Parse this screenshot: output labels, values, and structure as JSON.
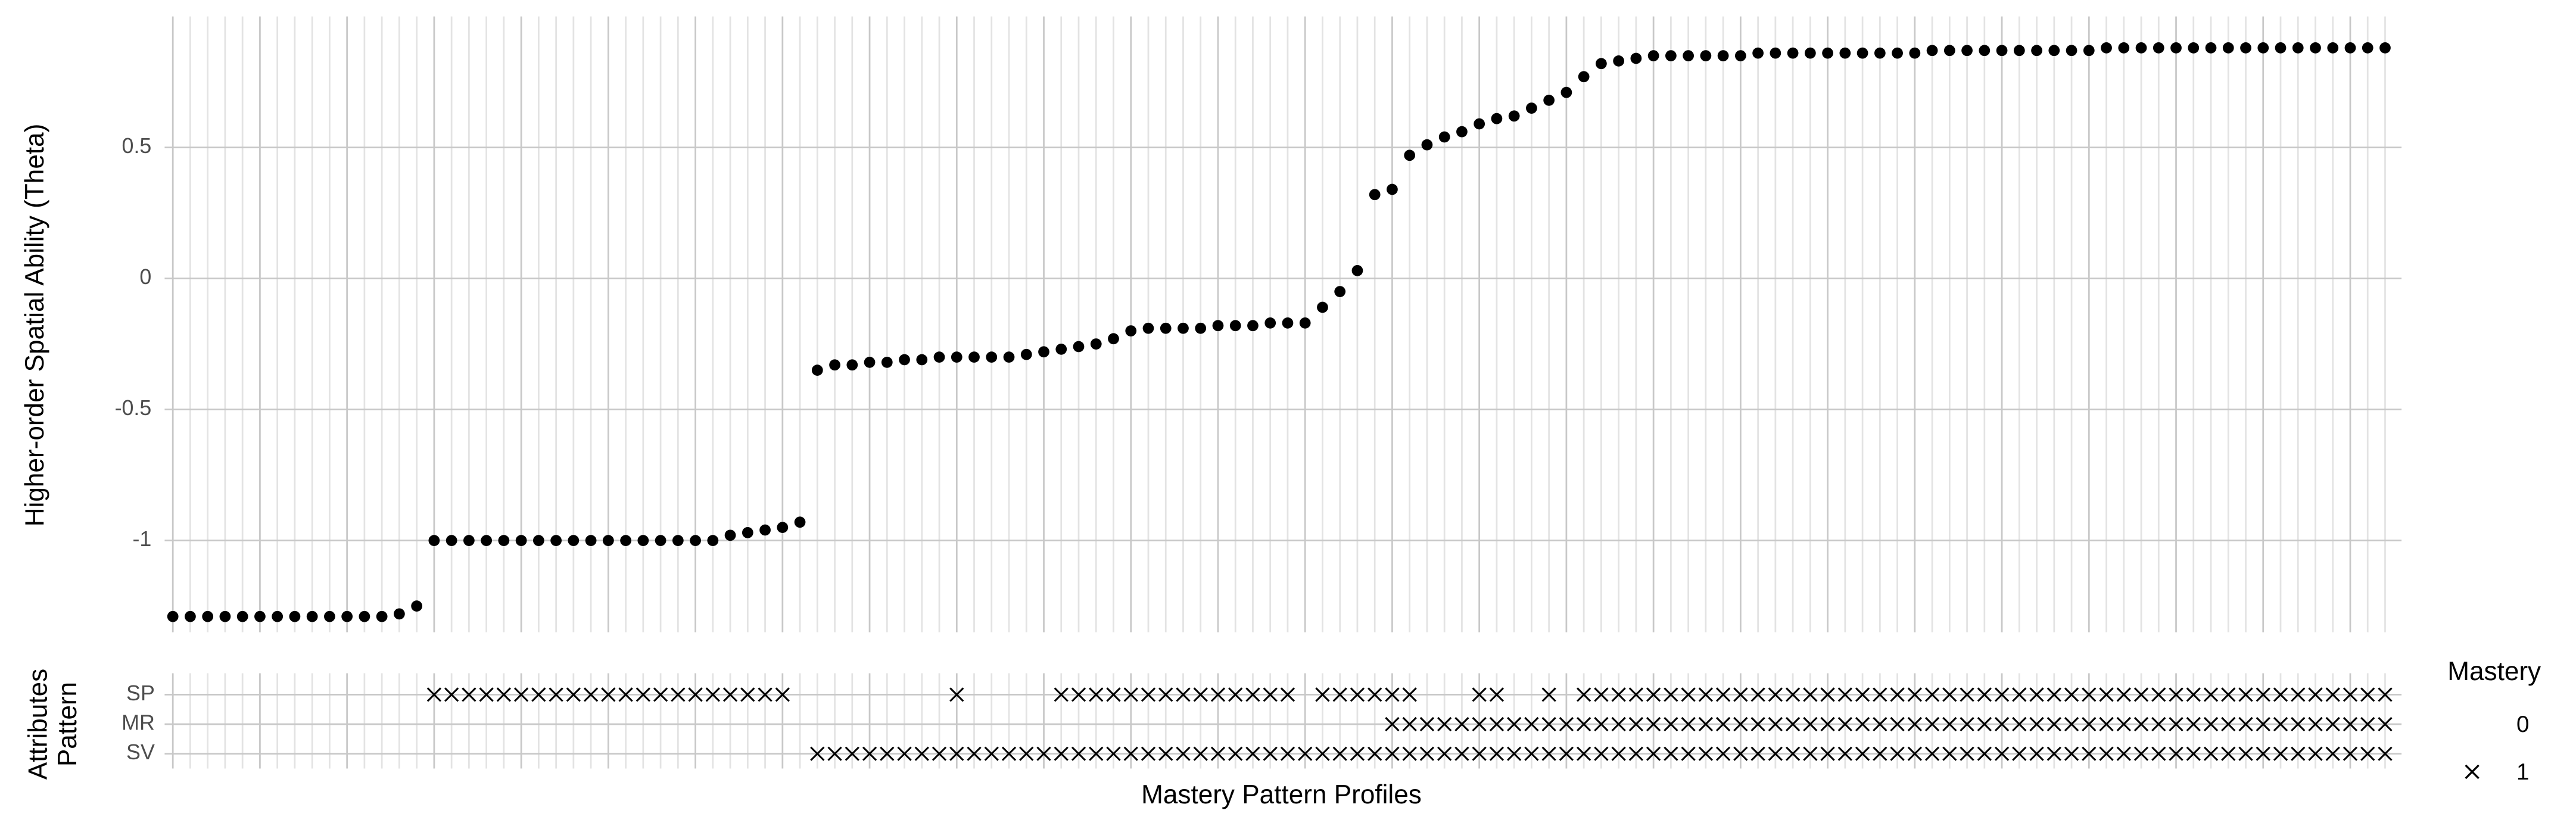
{
  "chart_data": {
    "type": "scatter",
    "ylabel": "Higher-order Spatial Ability (Theta)",
    "xlabel": "Mastery Pattern Profiles",
    "ylim": [
      -1.35,
      1.0
    ],
    "yticks": [
      -1,
      -0.5,
      0,
      0.5
    ],
    "grid": true,
    "color": "#000000",
    "values": [
      -1.29,
      -1.29,
      -1.29,
      -1.29,
      -1.29,
      -1.29,
      -1.29,
      -1.29,
      -1.29,
      -1.29,
      -1.29,
      -1.29,
      -1.29,
      -1.28,
      -1.25,
      -1,
      -1,
      -1,
      -1,
      -1,
      -1,
      -1,
      -1,
      -1,
      -1,
      -1,
      -1,
      -1,
      -1,
      -1,
      -1,
      -1,
      -0.98,
      -0.97,
      -0.96,
      -0.95,
      -0.93,
      -0.35,
      -0.33,
      -0.33,
      -0.32,
      -0.32,
      -0.31,
      -0.31,
      -0.3,
      -0.3,
      -0.3,
      -0.3,
      -0.3,
      -0.29,
      -0.28,
      -0.27,
      -0.26,
      -0.25,
      -0.23,
      -0.2,
      -0.19,
      -0.19,
      -0.19,
      -0.19,
      -0.18,
      -0.18,
      -0.18,
      -0.17,
      -0.17,
      -0.17,
      -0.11,
      -0.05,
      0.03,
      0.32,
      0.34,
      0.47,
      0.51,
      0.54,
      0.56,
      0.59,
      0.61,
      0.62,
      0.65,
      0.68,
      0.71,
      0.77,
      0.82,
      0.83,
      0.84,
      0.85,
      0.85,
      0.85,
      0.85,
      0.85,
      0.85,
      0.86,
      0.86,
      0.86,
      0.86,
      0.86,
      0.86,
      0.86,
      0.86,
      0.86,
      0.86,
      0.87,
      0.87,
      0.87,
      0.87,
      0.87,
      0.87,
      0.87,
      0.87,
      0.87,
      0.87,
      0.88,
      0.88,
      0.88,
      0.88,
      0.88,
      0.88,
      0.88,
      0.88,
      0.88,
      0.88,
      0.88,
      0.88,
      0.88,
      0.88,
      0.88,
      0.88,
      0.88
    ],
    "pattern": {
      "label_lines": [
        "Attributes",
        "Pattern"
      ],
      "rows": [
        "SP",
        "MR",
        "SV"
      ],
      "values": [
        [
          0,
          0,
          0,
          0,
          0,
          0,
          0,
          0,
          0,
          0,
          0,
          0,
          0,
          0,
          0,
          1,
          1,
          1,
          1,
          1,
          1,
          1,
          1,
          1,
          1,
          1,
          1,
          1,
          1,
          1,
          1,
          1,
          1,
          1,
          1,
          1,
          0,
          0,
          0,
          0,
          0,
          0,
          0,
          0,
          0,
          1,
          0,
          0,
          0,
          0,
          0,
          1,
          1,
          1,
          1,
          1,
          1,
          1,
          1,
          1,
          1,
          1,
          1,
          1,
          1,
          0,
          1,
          1,
          1,
          1,
          1,
          1,
          0,
          0,
          0,
          1,
          1,
          0,
          0,
          1,
          0,
          1,
          1,
          1,
          1,
          1,
          1,
          1,
          1,
          1,
          1,
          1,
          1,
          1,
          1,
          1,
          1,
          1,
          1,
          1,
          1,
          1,
          1,
          1,
          1,
          1,
          1,
          1,
          1,
          1,
          1,
          1,
          1,
          1,
          1,
          1,
          1,
          1,
          1,
          1,
          1,
          1,
          1,
          1,
          1,
          1,
          1,
          1
        ],
        [
          0,
          0,
          0,
          0,
          0,
          0,
          0,
          0,
          0,
          0,
          0,
          0,
          0,
          0,
          0,
          0,
          0,
          0,
          0,
          0,
          0,
          0,
          0,
          0,
          0,
          0,
          0,
          0,
          0,
          0,
          0,
          0,
          0,
          0,
          0,
          0,
          0,
          0,
          0,
          0,
          0,
          0,
          0,
          0,
          0,
          0,
          0,
          0,
          0,
          0,
          0,
          0,
          0,
          0,
          0,
          0,
          0,
          0,
          0,
          0,
          0,
          0,
          0,
          0,
          0,
          0,
          0,
          0,
          0,
          0,
          1,
          1,
          1,
          1,
          1,
          1,
          1,
          1,
          1,
          1,
          1,
          1,
          1,
          1,
          1,
          1,
          1,
          1,
          1,
          1,
          1,
          1,
          1,
          1,
          1,
          1,
          1,
          1,
          1,
          1,
          1,
          1,
          1,
          1,
          1,
          1,
          1,
          1,
          1,
          1,
          1,
          1,
          1,
          1,
          1,
          1,
          1,
          1,
          1,
          1,
          1,
          1,
          1,
          1,
          1,
          1,
          1,
          1
        ],
        [
          0,
          0,
          0,
          0,
          0,
          0,
          0,
          0,
          0,
          0,
          0,
          0,
          0,
          0,
          0,
          0,
          0,
          0,
          0,
          0,
          0,
          0,
          0,
          0,
          0,
          0,
          0,
          0,
          0,
          0,
          0,
          0,
          0,
          0,
          0,
          0,
          0,
          1,
          1,
          1,
          1,
          1,
          1,
          1,
          1,
          1,
          1,
          1,
          1,
          1,
          1,
          1,
          1,
          1,
          1,
          1,
          1,
          1,
          1,
          1,
          1,
          1,
          1,
          1,
          1,
          1,
          1,
          1,
          1,
          1,
          1,
          1,
          1,
          1,
          1,
          1,
          1,
          1,
          1,
          1,
          1,
          1,
          1,
          1,
          1,
          1,
          1,
          1,
          1,
          1,
          1,
          1,
          1,
          1,
          1,
          1,
          1,
          1,
          1,
          1,
          1,
          1,
          1,
          1,
          1,
          1,
          1,
          1,
          1,
          1,
          1,
          1,
          1,
          1,
          1,
          1,
          1,
          1,
          1,
          1,
          1,
          1,
          1,
          1,
          1,
          1,
          1,
          1
        ]
      ]
    },
    "legend_title": "Mastery",
    "legend_levels": [
      0,
      1
    ]
  }
}
